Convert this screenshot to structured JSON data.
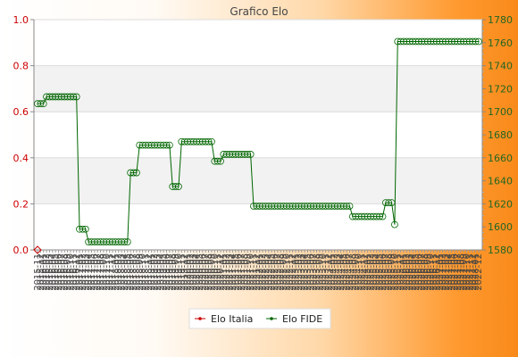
{
  "chart_data": {
    "type": "line",
    "title": "Grafico Elo",
    "xlabel": "",
    "ylabel_left": "",
    "ylabel_right": "",
    "ylim_left": [
      0,
      1
    ],
    "yticks_left": [
      "0.0",
      "0.2",
      "0.4",
      "0.6",
      "0.8",
      "1.0"
    ],
    "ylim_right": [
      1580,
      1780
    ],
    "yticks_right": [
      "1580",
      "1600",
      "1620",
      "1640",
      "1660",
      "1680",
      "1700",
      "1720",
      "1740",
      "1760",
      "1780"
    ],
    "grid": "horizontal bands",
    "legend_position": "bottom",
    "x_first_label": "2015-11",
    "x_last_label": "2022-12",
    "series": [
      {
        "name": "Elo Italia",
        "color": "#cc0000",
        "axis": "left",
        "values": [
          0
        ]
      },
      {
        "name": "Elo FIDE",
        "color": "#006600",
        "axis": "right",
        "values": [
          1707,
          1707,
          1707,
          1713,
          1713,
          1713,
          1713,
          1713,
          1713,
          1713,
          1713,
          1713,
          1713,
          1713,
          1598,
          1598,
          1598,
          1587,
          1587,
          1587,
          1587,
          1587,
          1587,
          1587,
          1587,
          1587,
          1587,
          1587,
          1587,
          1587,
          1587,
          1647,
          1647,
          1647,
          1671,
          1671,
          1671,
          1671,
          1671,
          1671,
          1671,
          1671,
          1671,
          1671,
          1671,
          1635,
          1635,
          1635,
          1674,
          1674,
          1674,
          1674,
          1674,
          1674,
          1674,
          1674,
          1674,
          1674,
          1674,
          1657,
          1657,
          1657,
          1663,
          1663,
          1663,
          1663,
          1663,
          1663,
          1663,
          1663,
          1663,
          1663,
          1618,
          1618,
          1618,
          1618,
          1618,
          1618,
          1618,
          1618,
          1618,
          1618,
          1618,
          1618,
          1618,
          1618,
          1618,
          1618,
          1618,
          1618,
          1618,
          1618,
          1618,
          1618,
          1618,
          1618,
          1618,
          1618,
          1618,
          1618,
          1618,
          1618,
          1618,
          1618,
          1618,
          1609,
          1609,
          1609,
          1609,
          1609,
          1609,
          1609,
          1609,
          1609,
          1609,
          1609,
          1621,
          1621,
          1621,
          1602,
          1761,
          1761,
          1761,
          1761,
          1761,
          1761,
          1761,
          1761,
          1761,
          1761,
          1761,
          1761,
          1761,
          1761,
          1761,
          1761,
          1761,
          1761,
          1761,
          1761,
          1761,
          1761,
          1761,
          1761,
          1761,
          1761,
          1761,
          1761
        ]
      }
    ]
  }
}
